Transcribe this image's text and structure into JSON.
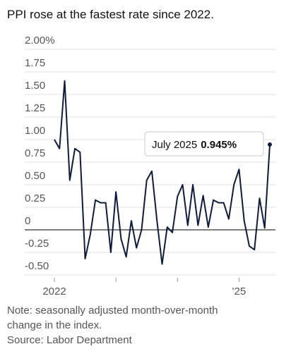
{
  "chart_data": {
    "type": "line",
    "title": "PPI rose at the fastest rate since 2022.",
    "note": "Note: seasonally adjusted month-over-month",
    "note2": "change in the index.",
    "source": "Source: Labor Department",
    "annotation": "July 2025",
    "categories": [
      "2022",
      null,
      null,
      null,
      null,
      null,
      null,
      null,
      null,
      null,
      null,
      null,
      null,
      null,
      null,
      null,
      null,
      null,
      null,
      null,
      null,
      null,
      null,
      null,
      null,
      null,
      null,
      null,
      null,
      null,
      null,
      null,
      null,
      null,
      null,
      null,
      "'25",
      null,
      null,
      null,
      null,
      null,
      null
    ],
    "series": [
      {
        "color": "#0d1b3e",
        "values": [
          1.0,
          0.9,
          1.65,
          0.55,
          0.9,
          0.86,
          -0.32,
          -0.05,
          0.33,
          0.3,
          0.3,
          -0.25,
          0.42,
          -0.1,
          -0.3,
          0.1,
          -0.2,
          0.0,
          0.55,
          0.65,
          0.1,
          -0.38,
          0.03,
          -0.03,
          0.37,
          0.5,
          0.05,
          0.5,
          0.05,
          0.38,
          0.03,
          0.33,
          0.3,
          0.3,
          0.12,
          0.5,
          0.67,
          0.1,
          -0.18,
          -0.22,
          0.35,
          0.02,
          0.945
        ],
        "value_labels": [
          null,
          null,
          null,
          null,
          null,
          null,
          null,
          null,
          null,
          null,
          null,
          null,
          null,
          null,
          null,
          null,
          null,
          null,
          null,
          null,
          null,
          null,
          null,
          null,
          null,
          null,
          null,
          null,
          null,
          null,
          null,
          null,
          null,
          null,
          null,
          null,
          null,
          null,
          null,
          null,
          null,
          null,
          "0.945%"
        ]
      }
    ],
    "ylim": [
      -0.5,
      2.0
    ],
    "yticks": [
      {
        "value": 2.0,
        "label": "2.00%"
      },
      {
        "value": 1.75,
        "label": "1.75"
      },
      {
        "value": 1.5,
        "label": "1.50"
      },
      {
        "value": 1.25,
        "label": "1.25"
      },
      {
        "value": 1.0,
        "label": "1.00"
      },
      {
        "value": 0.75,
        "label": "0.75"
      },
      {
        "value": 0.5,
        "label": "0.50"
      },
      {
        "value": 0.25,
        "label": "0.25"
      },
      0,
      {
        "value": -0.25,
        "label": "-0.25"
      },
      {
        "value": -0.5,
        "label": "-0.50"
      }
    ],
    "grid": true
  }
}
